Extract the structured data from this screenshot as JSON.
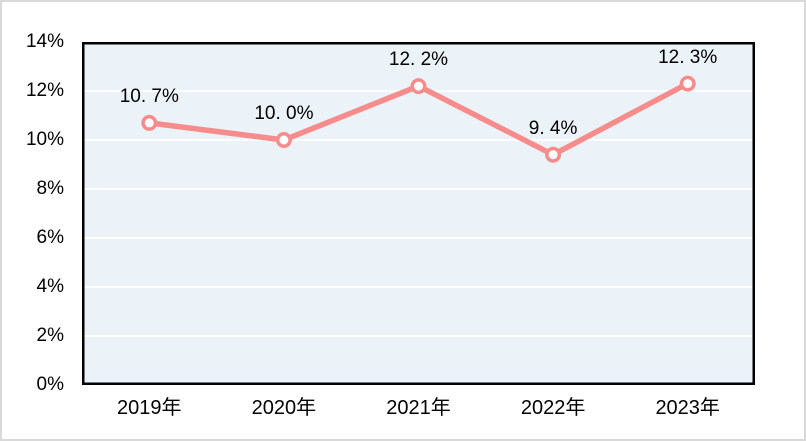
{
  "chart_data": {
    "type": "line",
    "title": "",
    "legend": "none",
    "categories": [
      "2019年",
      "2020年",
      "2021年",
      "2022年",
      "2023年"
    ],
    "values": [
      10.7,
      10.0,
      12.2,
      9.4,
      12.3
    ],
    "data_labels": [
      "10. 7%",
      "10. 0%",
      "12. 2%",
      "9. 4%",
      "12. 3%"
    ],
    "y_tick_values": [
      0,
      2,
      4,
      6,
      8,
      10,
      12,
      14
    ],
    "y_tick_labels": [
      "0%",
      "2%",
      "4%",
      "6%",
      "8%",
      "10%",
      "12%",
      "14%"
    ],
    "ylim": [
      0,
      14
    ],
    "y_step": 2,
    "grid": "horizontal",
    "data_label_position": "above",
    "marker": "circle-open",
    "colors": {
      "line": "#F78C8C",
      "marker_fill": "#FFFFFF",
      "plot_background": "#EBF2F8",
      "gridline": "#FFFFFF",
      "plot_border": "#000000",
      "outer_border": "#D9D9D9",
      "text": "#000000"
    }
  }
}
